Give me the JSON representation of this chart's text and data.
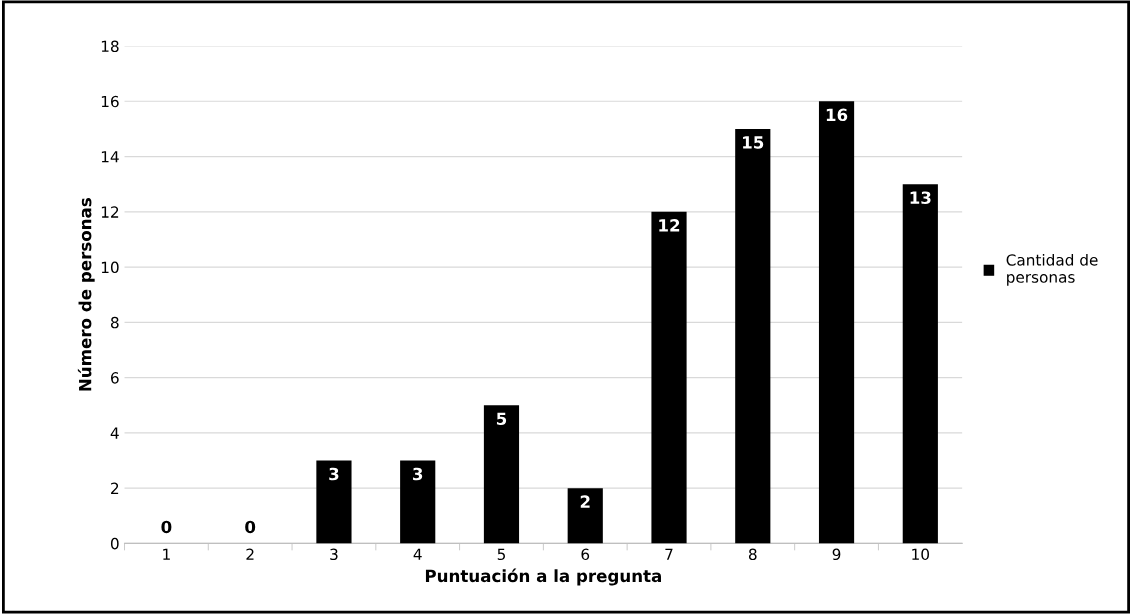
{
  "chart_data": {
    "type": "bar",
    "xlabel": "Puntuación a la pregunta",
    "ylabel": "Número de personas",
    "categories": [
      "1",
      "2",
      "3",
      "4",
      "5",
      "6",
      "7",
      "8",
      "9",
      "10"
    ],
    "series": [
      {
        "name": "Cantidad de personas",
        "color": "#000000",
        "values": [
          0,
          0,
          3,
          3,
          5,
          2,
          12,
          15,
          16,
          13
        ]
      }
    ],
    "ylim": [
      0,
      18
    ],
    "yticks": [
      0,
      2,
      4,
      6,
      8,
      10,
      12,
      14,
      16,
      18
    ],
    "grid": "y",
    "legend": "right",
    "data_labels": true
  }
}
